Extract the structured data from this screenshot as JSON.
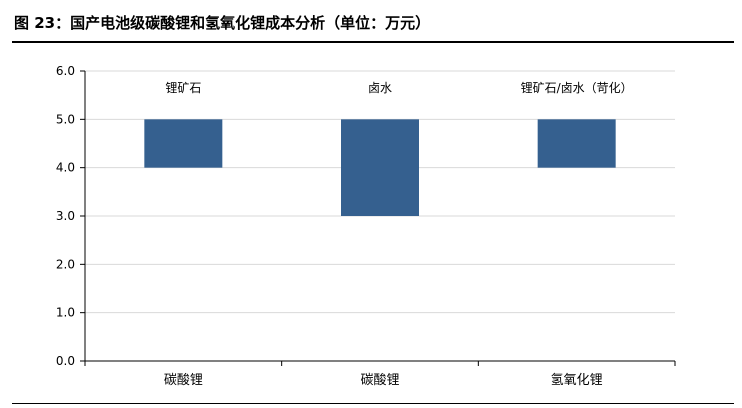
{
  "header": {
    "title": "图 23：国产电池级碳酸锂和氢氧化锂成本分析（单位：万元）"
  },
  "chart_data": {
    "type": "bar",
    "title": "",
    "xlabel": "",
    "ylabel": "",
    "ylim": [
      0,
      6
    ],
    "yticks": [
      "0.0",
      "1.0",
      "2.0",
      "3.0",
      "4.0",
      "5.0",
      "6.0"
    ],
    "grid": true,
    "categories": [
      "碳酸锂",
      "碳酸锂",
      "氢氧化锂"
    ],
    "series": [
      {
        "low": [
          4.0,
          3.0,
          4.0
        ],
        "high": [
          5.0,
          5.0,
          5.0
        ]
      }
    ],
    "annotations": [
      "锂矿石",
      "卤水",
      "锂矿石/卤水（苛化）"
    ],
    "bar_color": "#35608F"
  }
}
